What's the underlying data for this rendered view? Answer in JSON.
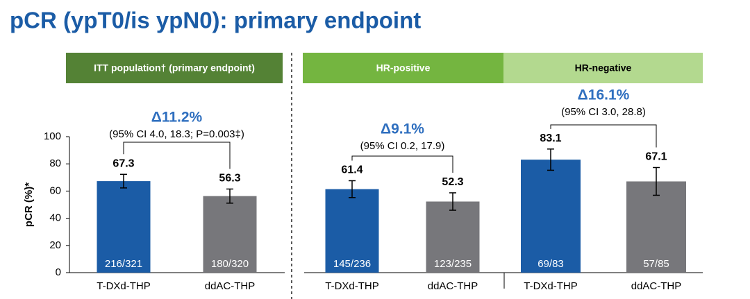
{
  "title": "pCR (ypT0/is ypN0): primary endpoint",
  "chart_data": [
    {
      "type": "bar",
      "title": "ITT population† (primary endpoint)",
      "header_color": "#548235",
      "ylabel": "pCR (%)*",
      "ylim": [
        0,
        100
      ],
      "yticks": [
        0,
        20,
        40,
        60,
        80,
        100
      ],
      "categories": [
        "T-DXd-THP",
        "ddAC-THP"
      ],
      "values": [
        67.3,
        56.3
      ],
      "errors": [
        5,
        5.2
      ],
      "colors": [
        "#1b5ca6",
        "#77777b"
      ],
      "count_labels": [
        "216/321",
        "180/320"
      ],
      "annotation": "Δ11.2%",
      "annotation_detail": "(95% CI 4.0, 18.3; P=0.003‡)"
    },
    {
      "type": "bar",
      "title": "HR-positive",
      "header_color": "#74b540",
      "ylim": [
        0,
        100
      ],
      "categories": [
        "T-DXd-THP",
        "ddAC-THP"
      ],
      "values": [
        61.4,
        52.3
      ],
      "errors": [
        6.2,
        6.4
      ],
      "colors": [
        "#1b5ca6",
        "#77777b"
      ],
      "count_labels": [
        "145/236",
        "123/235"
      ],
      "annotation": "Δ9.1%",
      "annotation_detail": "(95% CI 0.2, 17.9)"
    },
    {
      "type": "bar",
      "title": "HR-negative",
      "header_color": "#b3d98f",
      "ylim": [
        0,
        100
      ],
      "categories": [
        "T-DXd-THP",
        "ddAC-THP"
      ],
      "values": [
        83.1,
        67.1
      ],
      "errors": [
        7.8,
        10.2
      ],
      "colors": [
        "#1b5ca6",
        "#77777b"
      ],
      "count_labels": [
        "69/83",
        "57/85"
      ],
      "annotation": "Δ16.1%",
      "annotation_detail": "(95% CI 3.0, 28.8)"
    }
  ]
}
